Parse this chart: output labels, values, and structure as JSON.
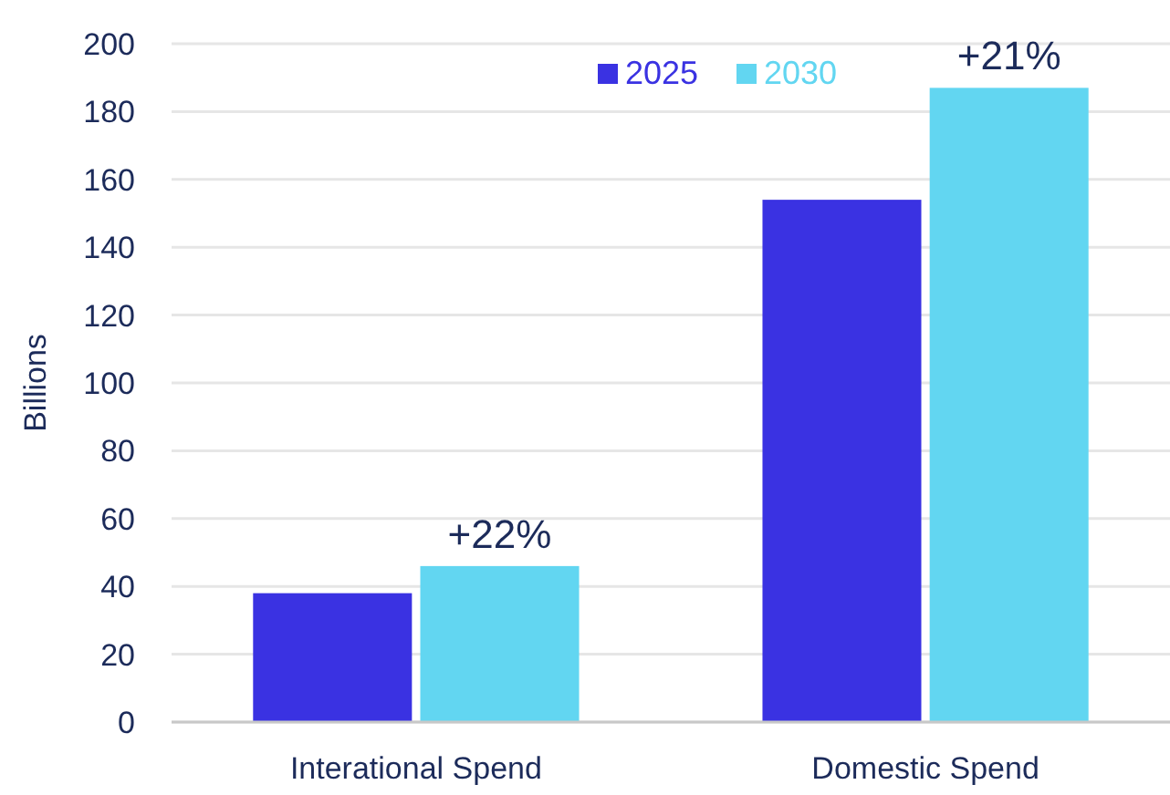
{
  "chart_data": {
    "type": "bar",
    "ylabel": "Billions",
    "categories": [
      "Interational Spend",
      "Domestic Spend"
    ],
    "series": [
      {
        "name": "2025",
        "color": "#3a32e2",
        "values": [
          38,
          154
        ]
      },
      {
        "name": "2030",
        "color": "#62d6f1",
        "values": [
          46,
          187
        ]
      }
    ],
    "ylim": [
      0,
      200
    ],
    "yticks": [
      0,
      20,
      40,
      60,
      80,
      100,
      120,
      140,
      160,
      180,
      200
    ],
    "grid": "y",
    "legend": "top",
    "annotations": [
      {
        "text": "+22%",
        "x": "Interational Spend",
        "y": 46
      },
      {
        "text": "+21%",
        "x": "Domestic Spend",
        "y": 187
      }
    ]
  }
}
